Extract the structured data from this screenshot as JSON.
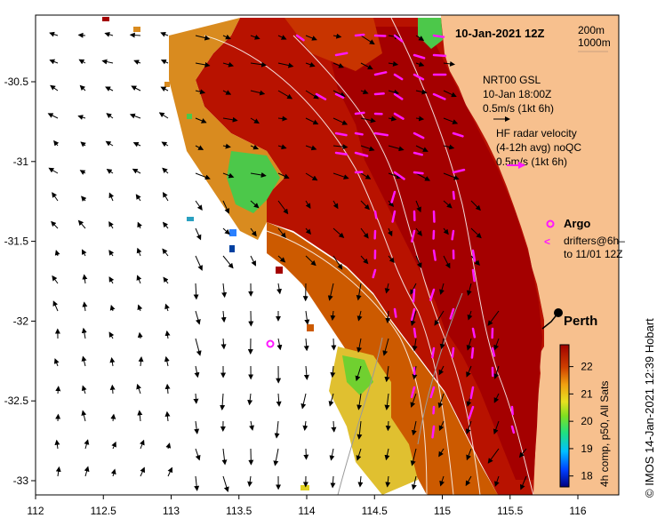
{
  "header": {
    "date": "10-Jan-2021 12Z"
  },
  "scale": {
    "depth1": "200m",
    "depth2": "1000m"
  },
  "legend": {
    "model_name": "NRT00 GSL",
    "model_time": "10-Jan 18:00Z",
    "model_scale": "0.5m/s (1kt 6h)",
    "hf_title": "HF radar velocity",
    "hf_sub": "(4-12h avg) noQC",
    "hf_scale": "0.5m/s (1kt 6h)",
    "argo": "Argo",
    "drifters_line1": "drifters@6h–",
    "drifters_line2": "to 11/01 12Z"
  },
  "place": {
    "city": "Perth"
  },
  "colorbar": {
    "label": "4h comp, p50, All Sats",
    "ticks": [
      "22",
      "21",
      "20",
      "19",
      "18"
    ],
    "tick_values": [
      22,
      21,
      20,
      19,
      18
    ],
    "range": [
      17.6,
      22.8
    ]
  },
  "credit": "©  IMOS 14-Jan-2021 12:39 Hobart",
  "axes": {
    "x_ticks": [
      "112",
      "112.5",
      "113",
      "113.5",
      "114",
      "114.5",
      "115",
      "115.5",
      "116"
    ],
    "x_values": [
      112,
      112.5,
      113,
      113.5,
      114,
      114.5,
      115,
      115.5,
      116
    ],
    "y_ticks": [
      "-30.5",
      "-31",
      "-31.5",
      "-32",
      "-32.5",
      "-33"
    ],
    "y_values": [
      -30.5,
      -31,
      -31.5,
      -32,
      -32.5,
      -33
    ],
    "lon_range": [
      112,
      116.3
    ],
    "lat_range": [
      -30.1,
      -33.1
    ]
  },
  "colors": {
    "land": "#f7c08e",
    "warm": "#a80000",
    "mid": "#cc3a00",
    "orange": "#d98b1f",
    "yellow": "#e6d437",
    "green": "#5cd43a",
    "hf_vectors": "#ff18ff",
    "model_vectors": "#000000"
  }
}
